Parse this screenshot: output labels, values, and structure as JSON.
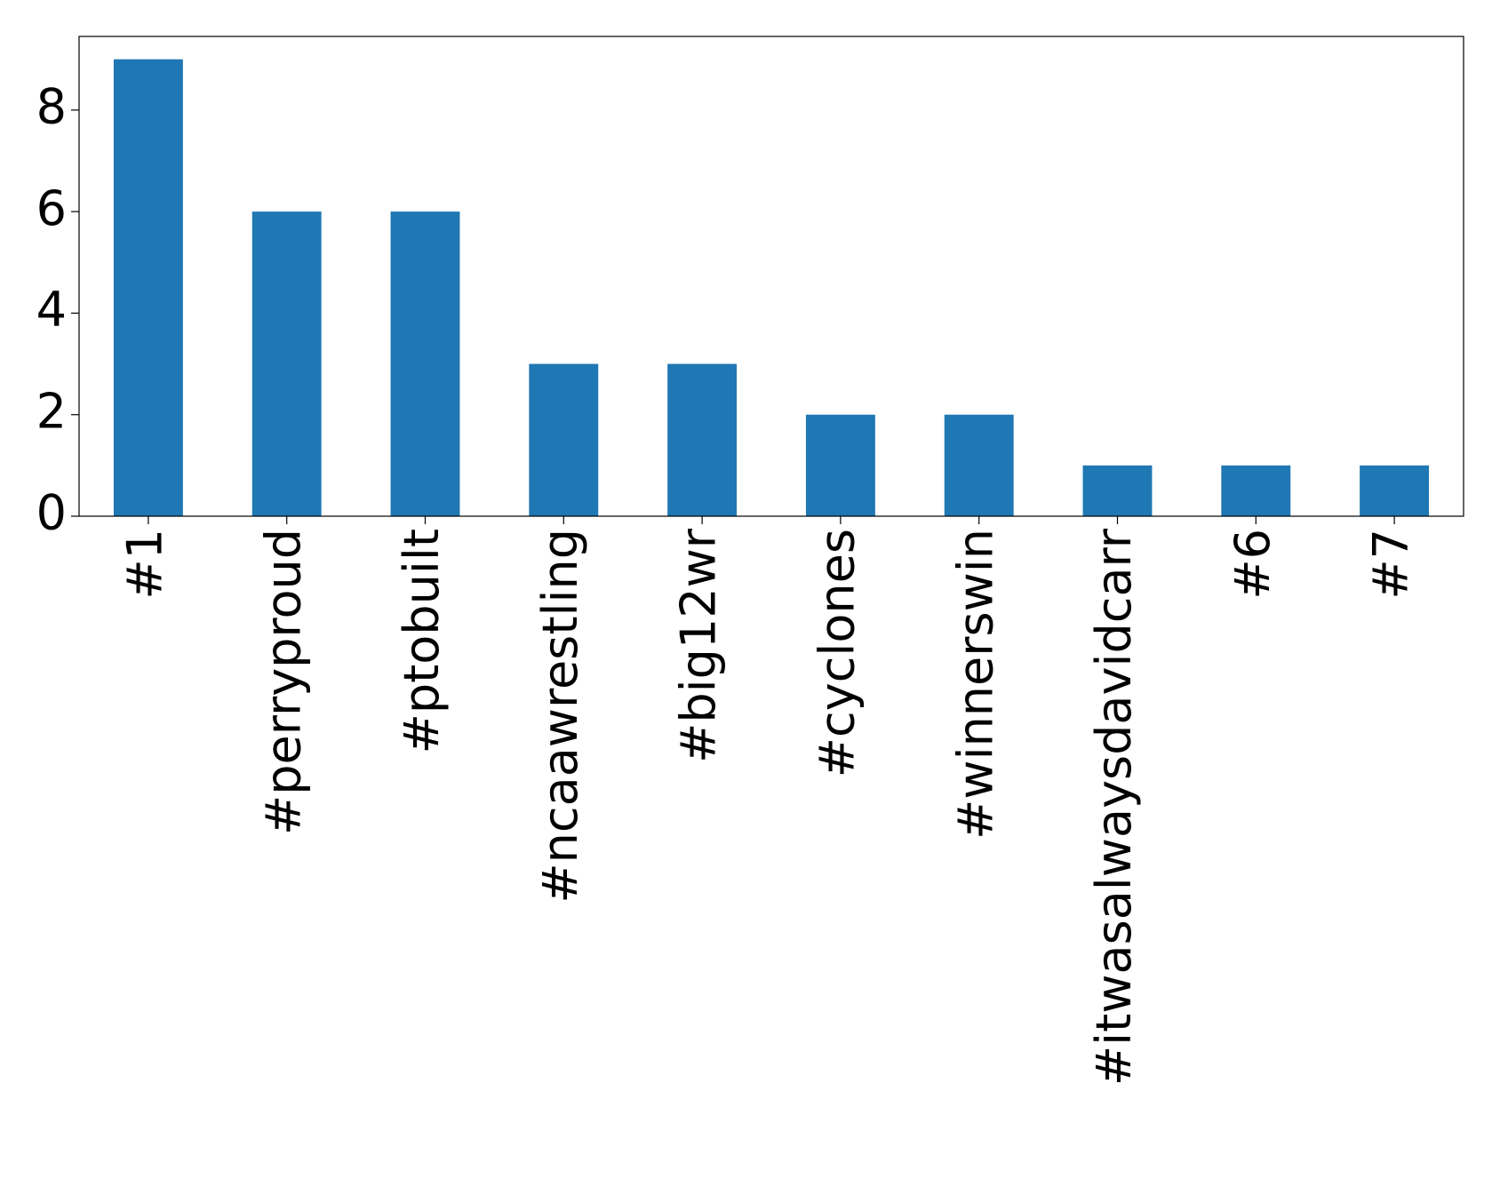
{
  "chart_data": {
    "type": "bar",
    "categories": [
      "#1",
      "#perryproud",
      "#ptobuilt",
      "#ncaawrestling",
      "#big12wr",
      "#cyclones",
      "#winnerswin",
      "#itwasalwaysdavidcarr",
      "#6",
      "#7"
    ],
    "values": [
      9,
      6,
      6,
      3,
      3,
      2,
      2,
      1,
      1,
      1
    ],
    "color": "#1f77b4",
    "ylim": [
      0,
      9.45
    ],
    "yticks": [
      0,
      2,
      4,
      6,
      8
    ],
    "grid": false
  }
}
